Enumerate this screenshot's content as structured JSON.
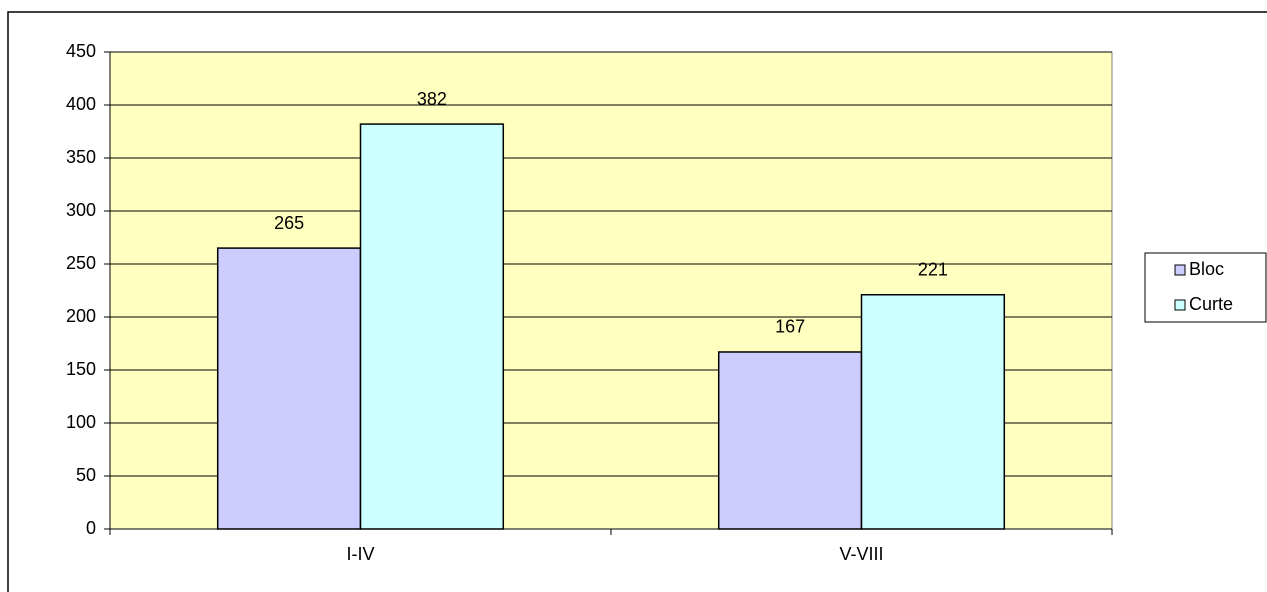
{
  "chart_data": {
    "type": "bar",
    "categories": [
      "I-IV",
      "V-VIII"
    ],
    "series": [
      {
        "name": "Bloc",
        "color": "#ccccff",
        "values": [
          265,
          167
        ]
      },
      {
        "name": "Curte",
        "color": "#ccffff",
        "values": [
          382,
          221
        ]
      }
    ],
    "ylim": [
      0,
      450
    ],
    "yticks": [
      0,
      50,
      100,
      150,
      200,
      250,
      300,
      350,
      400,
      450
    ],
    "grid": true,
    "legend": "right",
    "plot_background": "#ffffc0"
  }
}
